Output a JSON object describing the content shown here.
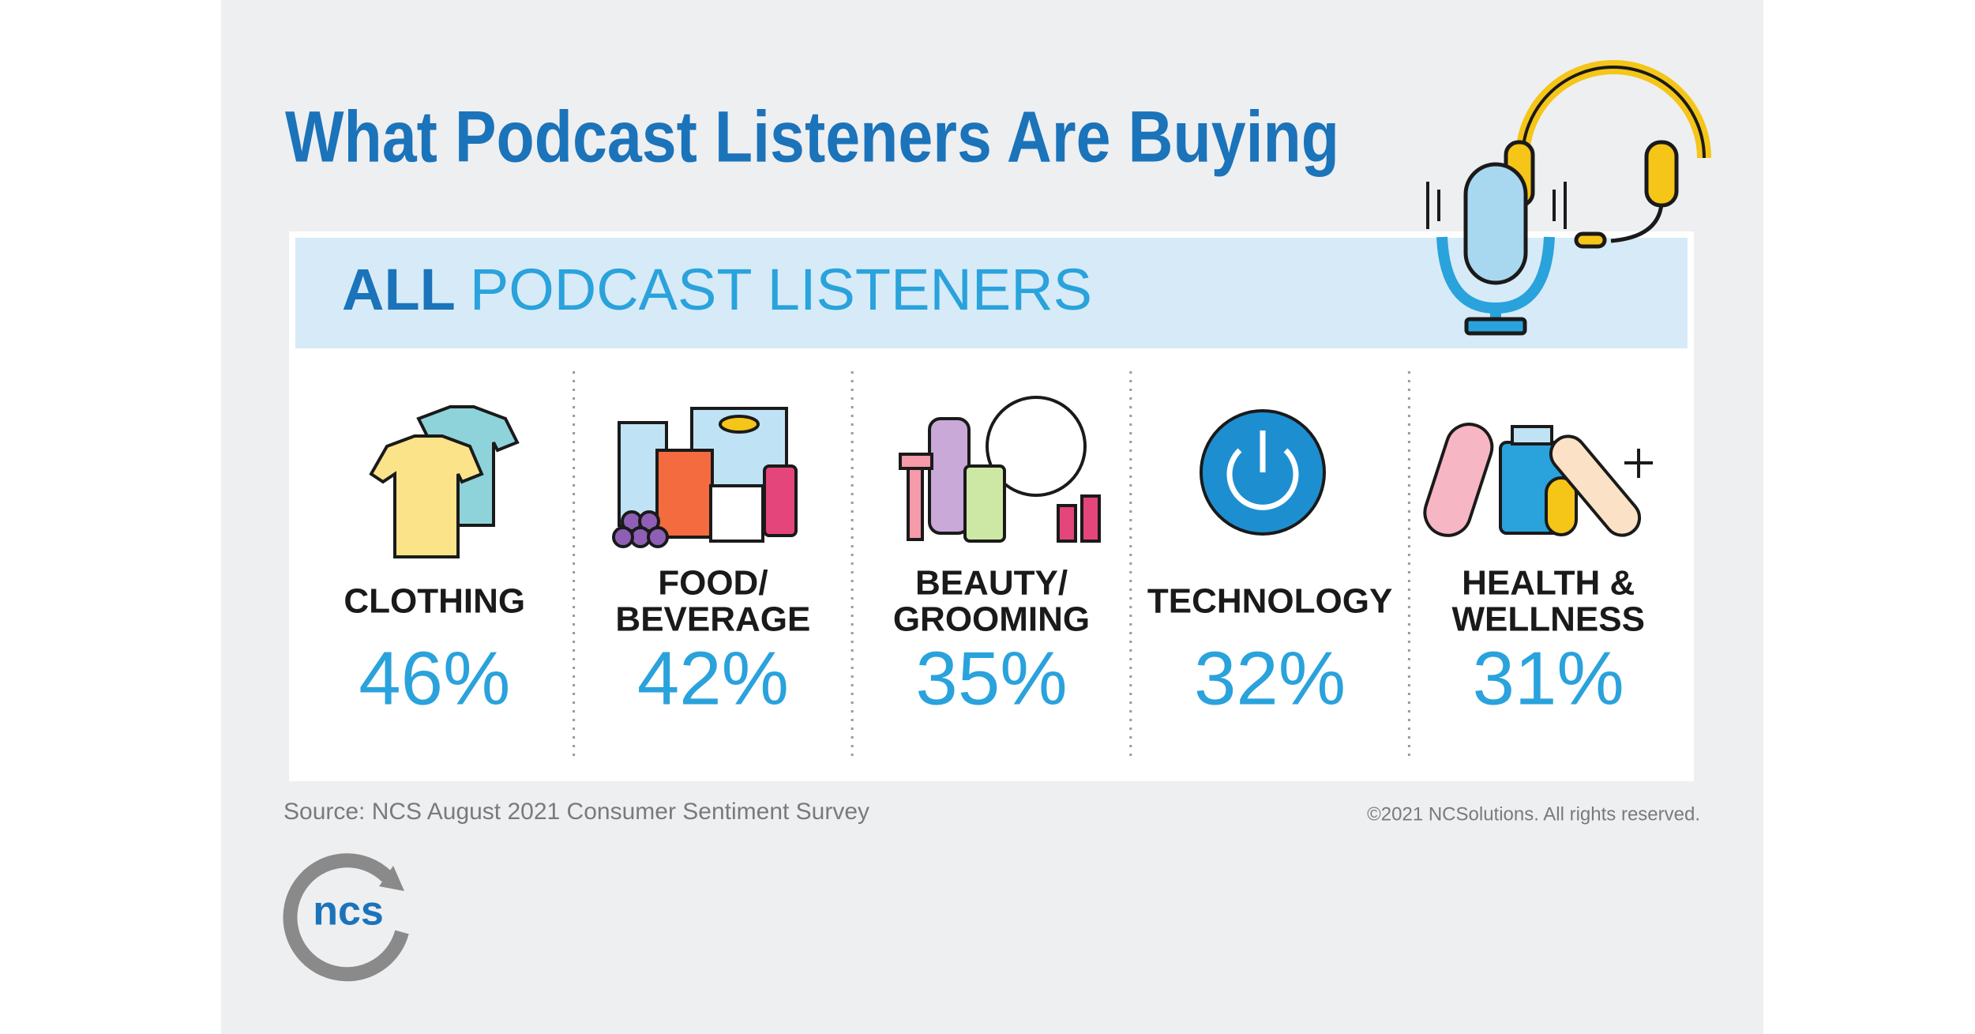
{
  "header": {
    "title": "What Podcast Listeners Are Buying"
  },
  "band": {
    "bold": "ALL",
    "rest": "PODCAST LISTENERS"
  },
  "categories": [
    {
      "label_lines": [
        "CLOTHING"
      ],
      "value": "46%"
    },
    {
      "label_lines": [
        "FOOD/",
        "BEVERAGE"
      ],
      "value": "42%"
    },
    {
      "label_lines": [
        "BEAUTY/",
        "GROOMING"
      ],
      "value": "35%"
    },
    {
      "label_lines": [
        "TECHNOLOGY"
      ],
      "value": "32%"
    },
    {
      "label_lines": [
        "HEALTH &",
        "WELLNESS"
      ],
      "value": "31%"
    }
  ],
  "footer": {
    "source": "Source: NCS August 2021 Consumer Sentiment Survey",
    "copyright": "©2021 NCSolutions. All rights reserved.",
    "logo": "ncs"
  }
}
